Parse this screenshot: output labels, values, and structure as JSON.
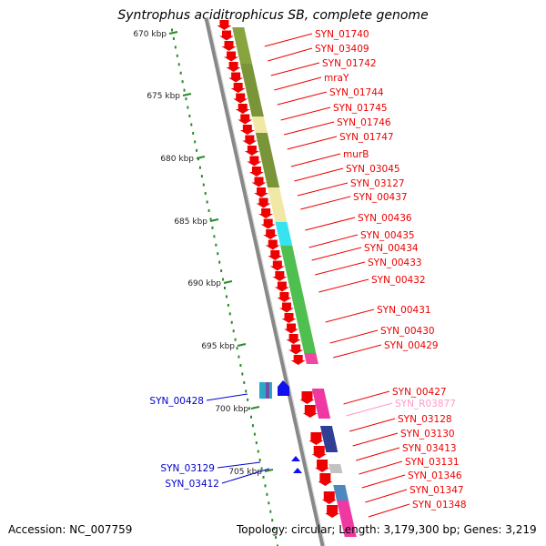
{
  "title": "Syntrophus aciditrophicus SB, complete genome",
  "accession": "Accession: NC_007759",
  "topology": "Topology: circular; Length: 3,179,300 bp; Genes: 3,219",
  "ruler": [
    "670 kbp",
    "675 kbp",
    "680 kbp",
    "685 kbp",
    "690 kbp",
    "695 kbp",
    "700 kbp",
    "705 kbp"
  ],
  "right_genes": [
    {
      "label": "SYN_01740",
      "color": "#ee0000"
    },
    {
      "label": "SYN_03409",
      "color": "#ee0000"
    },
    {
      "label": "SYN_01742",
      "color": "#ee0000"
    },
    {
      "label": "mraY",
      "color": "#ee0000"
    },
    {
      "label": "SYN_01744",
      "color": "#ee0000"
    },
    {
      "label": "SYN_01745",
      "color": "#ee0000"
    },
    {
      "label": "SYN_01746",
      "color": "#ee0000"
    },
    {
      "label": "SYN_01747",
      "color": "#ee0000"
    },
    {
      "label": "murB",
      "color": "#ee0000"
    },
    {
      "label": "SYN_03045",
      "color": "#ee0000"
    },
    {
      "label": "SYN_03127",
      "color": "#ee0000"
    },
    {
      "label": "SYN_00437",
      "color": "#ee0000"
    },
    {
      "label": "SYN_00436",
      "color": "#ee0000"
    },
    {
      "label": "SYN_00435",
      "color": "#ee0000"
    },
    {
      "label": "SYN_00434",
      "color": "#ee0000"
    },
    {
      "label": "SYN_00433",
      "color": "#ee0000"
    },
    {
      "label": "SYN_00432",
      "color": "#ee0000"
    },
    {
      "label": "SYN_00431",
      "color": "#ee0000"
    },
    {
      "label": "SYN_00430",
      "color": "#ee0000"
    },
    {
      "label": "SYN_00429",
      "color": "#ee0000"
    },
    {
      "label": "SYN_00427",
      "color": "#ee0000"
    },
    {
      "label": "SYN_R03877",
      "color": "#ff99cc"
    },
    {
      "label": "SYN_03128",
      "color": "#ee0000"
    },
    {
      "label": "SYN_03130",
      "color": "#ee0000"
    },
    {
      "label": "SYN_03413",
      "color": "#ee0000"
    },
    {
      "label": "SYN_03131",
      "color": "#ee0000"
    },
    {
      "label": "SYN_01346",
      "color": "#ee0000"
    },
    {
      "label": "SYN_01347",
      "color": "#ee0000"
    },
    {
      "label": "SYN_01348",
      "color": "#ee0000"
    }
  ],
  "left_genes": [
    {
      "label": "SYN_00428",
      "color": "#0000cc"
    },
    {
      "label": "SYN_03129",
      "color": "#0000cc"
    },
    {
      "label": "SYN_03412",
      "color": "#0000cc"
    }
  ]
}
